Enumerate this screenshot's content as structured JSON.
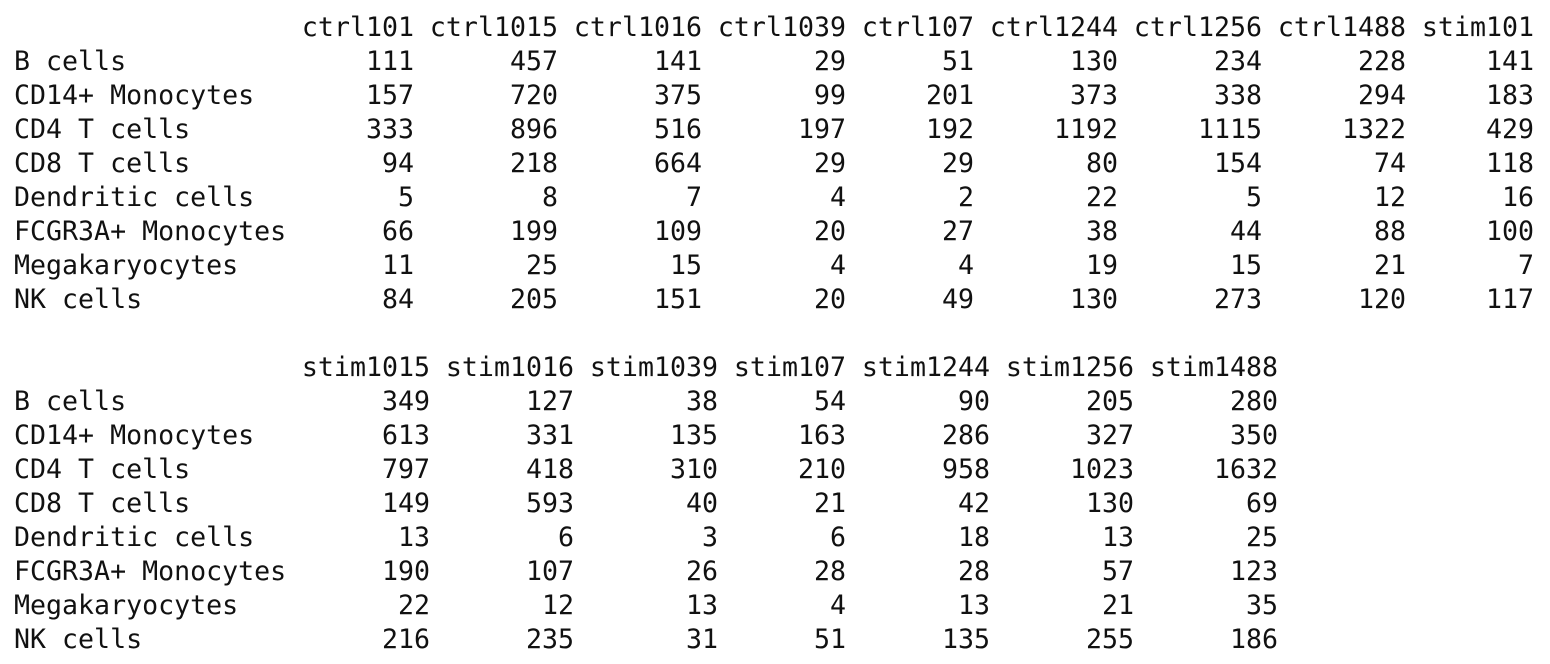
{
  "blocks": [
    {
      "columns": [
        "ctrl101",
        "ctrl1015",
        "ctrl1016",
        "ctrl1039",
        "ctrl107",
        "ctrl1244",
        "ctrl1256",
        "ctrl1488",
        "stim101"
      ],
      "rows": [
        {
          "label": "B cells",
          "values": [
            111,
            457,
            141,
            29,
            51,
            130,
            234,
            228,
            141
          ]
        },
        {
          "label": "CD14+ Monocytes",
          "values": [
            157,
            720,
            375,
            99,
            201,
            373,
            338,
            294,
            183
          ]
        },
        {
          "label": "CD4 T cells",
          "values": [
            333,
            896,
            516,
            197,
            192,
            1192,
            1115,
            1322,
            429
          ]
        },
        {
          "label": "CD8 T cells",
          "values": [
            94,
            218,
            664,
            29,
            29,
            80,
            154,
            74,
            118
          ]
        },
        {
          "label": "Dendritic cells",
          "values": [
            5,
            8,
            7,
            4,
            2,
            22,
            5,
            12,
            16
          ]
        },
        {
          "label": "FCGR3A+ Monocytes",
          "values": [
            66,
            199,
            109,
            20,
            27,
            38,
            44,
            88,
            100
          ]
        },
        {
          "label": "Megakaryocytes",
          "values": [
            11,
            25,
            15,
            4,
            4,
            19,
            15,
            21,
            7
          ]
        },
        {
          "label": "NK cells",
          "values": [
            84,
            205,
            151,
            20,
            49,
            130,
            273,
            120,
            117
          ]
        }
      ]
    },
    {
      "columns": [
        "stim1015",
        "stim1016",
        "stim1039",
        "stim107",
        "stim1244",
        "stim1256",
        "stim1488"
      ],
      "rows": [
        {
          "label": "B cells",
          "values": [
            349,
            127,
            38,
            54,
            90,
            205,
            280
          ]
        },
        {
          "label": "CD14+ Monocytes",
          "values": [
            613,
            331,
            135,
            163,
            286,
            327,
            350
          ]
        },
        {
          "label": "CD4 T cells",
          "values": [
            797,
            418,
            310,
            210,
            958,
            1023,
            1632
          ]
        },
        {
          "label": "CD8 T cells",
          "values": [
            149,
            593,
            40,
            21,
            42,
            130,
            69
          ]
        },
        {
          "label": "Dendritic cells",
          "values": [
            13,
            6,
            3,
            6,
            18,
            13,
            25
          ]
        },
        {
          "label": "FCGR3A+ Monocytes",
          "values": [
            190,
            107,
            26,
            28,
            28,
            57,
            123
          ]
        },
        {
          "label": "Megakaryocytes",
          "values": [
            22,
            12,
            13,
            4,
            13,
            21,
            35
          ]
        },
        {
          "label": "NK cells",
          "values": [
            216,
            235,
            31,
            51,
            135,
            255,
            186
          ]
        }
      ]
    }
  ]
}
